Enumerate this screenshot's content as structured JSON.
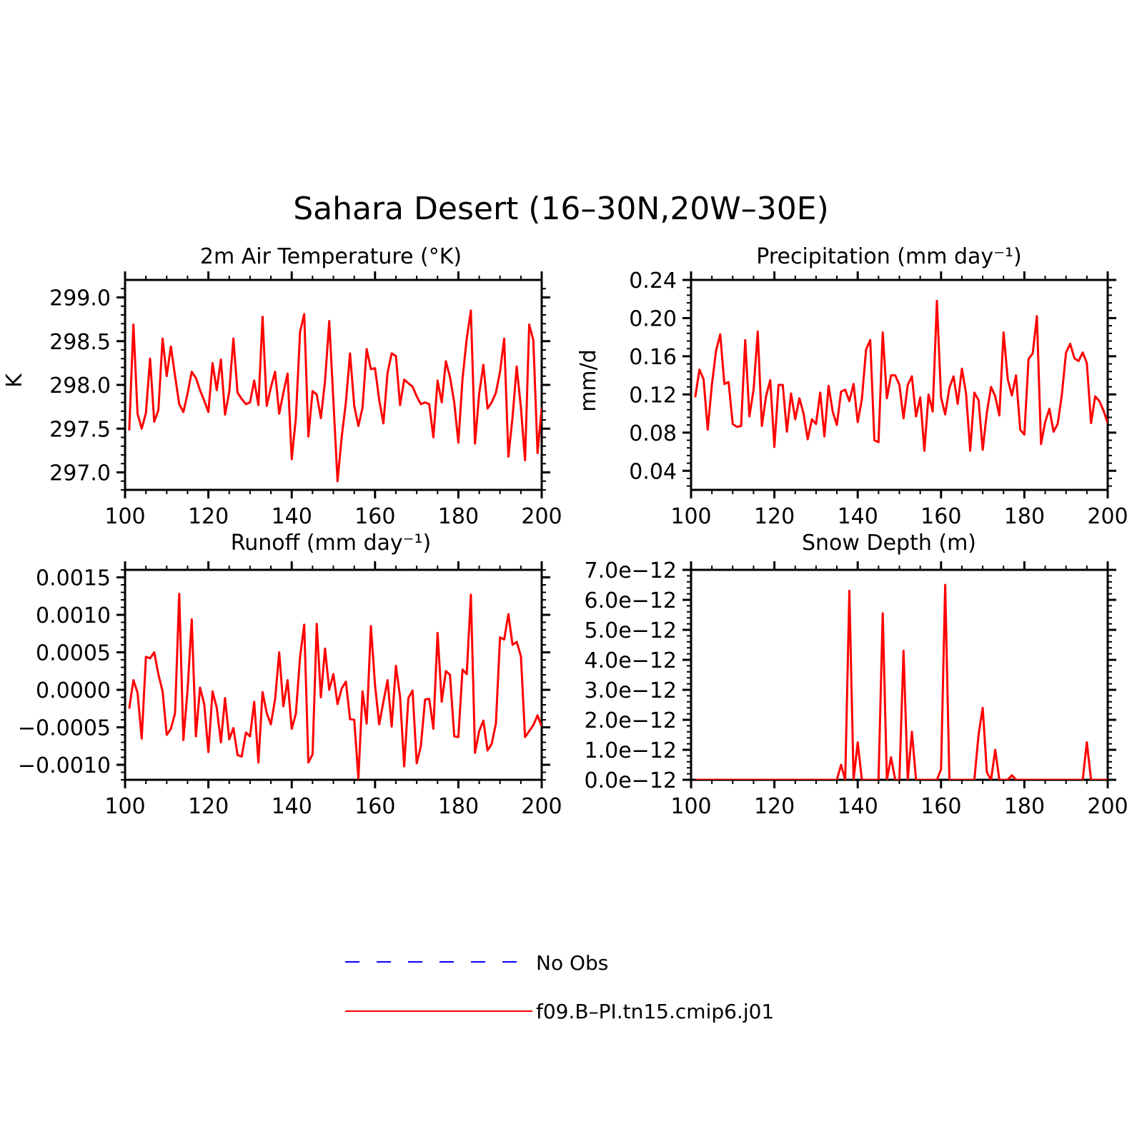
{
  "figure": {
    "title": "Sahara Desert (16–30N,20W–30E)"
  },
  "legend": {
    "items": [
      {
        "label": "No Obs",
        "color": "#0000ff",
        "dashed": true
      },
      {
        "label": "f09.B–PI.tn15.cmip6.j01",
        "color": "#ff0000",
        "dashed": false
      }
    ]
  },
  "chart_data": [
    {
      "type": "line",
      "title": "2m Air Temperature (°K)",
      "ylabel": "K",
      "xlim": [
        100,
        200
      ],
      "ylim": [
        296.8,
        299.2
      ],
      "xticks": [
        "100",
        "120",
        "140",
        "160",
        "180",
        "200"
      ],
      "yticks": [
        "297.0",
        "297.5",
        "298.0",
        "298.5",
        "299.0"
      ],
      "series": [
        {
          "name": "f09.B–PI.tn15.cmip6.j01",
          "color": "#ff0000",
          "x": [
            101,
            102,
            103,
            104,
            105,
            106,
            107,
            108,
            109,
            110,
            111,
            112,
            113,
            114,
            115,
            116,
            117,
            118,
            119,
            120,
            121,
            122,
            123,
            124,
            125,
            126,
            127,
            128,
            129,
            130,
            131,
            132,
            133,
            134,
            135,
            136,
            137,
            138,
            139,
            140,
            141,
            142,
            143,
            144,
            145,
            146,
            147,
            148,
            149,
            150,
            151,
            152,
            153,
            154,
            155,
            156,
            157,
            158,
            159,
            160,
            161,
            162,
            163,
            164,
            165,
            166,
            167,
            168,
            169,
            170,
            171,
            172,
            173,
            174,
            175,
            176,
            177,
            178,
            179,
            180,
            181,
            182,
            183,
            184,
            185,
            186,
            187,
            188,
            189,
            190,
            191,
            192,
            193,
            194,
            195,
            196,
            197,
            198,
            199,
            200
          ],
          "y": [
            297.48,
            298.69,
            297.67,
            297.5,
            297.68,
            298.3,
            297.58,
            297.71,
            298.53,
            298.1,
            298.44,
            298.1,
            297.78,
            297.69,
            297.9,
            298.15,
            298.08,
            297.94,
            297.82,
            297.69,
            298.25,
            297.94,
            298.29,
            297.66,
            297.92,
            298.53,
            297.91,
            297.84,
            297.78,
            297.8,
            298.05,
            297.77,
            298.78,
            297.76,
            297.97,
            298.15,
            297.67,
            297.91,
            298.13,
            297.15,
            297.62,
            298.61,
            298.81,
            297.41,
            297.93,
            297.89,
            297.62,
            298.04,
            298.73,
            297.82,
            296.9,
            297.41,
            297.8,
            298.36,
            297.76,
            297.53,
            297.74,
            298.41,
            298.18,
            298.19,
            297.83,
            297.56,
            298.14,
            298.36,
            298.33,
            297.77,
            298.06,
            298.02,
            297.98,
            297.87,
            297.78,
            297.8,
            297.78,
            297.4,
            298.05,
            297.8,
            298.27,
            298.09,
            297.8,
            297.34,
            298.07,
            298.53,
            298.85,
            297.33,
            297.9,
            298.23,
            297.73,
            297.8,
            297.91,
            298.15,
            298.53,
            297.18,
            297.63,
            298.21,
            297.74,
            297.14,
            298.69,
            298.51,
            297.22,
            297.74
          ]
        }
      ]
    },
    {
      "type": "line",
      "title": "Precipitation (mm day⁻¹)",
      "ylabel": "mm/d",
      "xlim": [
        100,
        200
      ],
      "ylim": [
        0.02,
        0.24
      ],
      "xticks": [
        "100",
        "120",
        "140",
        "160",
        "180",
        "200"
      ],
      "yticks": [
        "0.04",
        "0.08",
        "0.12",
        "0.16",
        "0.20",
        "0.24"
      ],
      "series": [
        {
          "name": "f09.B–PI.tn15.cmip6.j01",
          "color": "#ff0000",
          "x": [
            101,
            102,
            103,
            104,
            105,
            106,
            107,
            108,
            109,
            110,
            111,
            112,
            113,
            114,
            115,
            116,
            117,
            118,
            119,
            120,
            121,
            122,
            123,
            124,
            125,
            126,
            127,
            128,
            129,
            130,
            131,
            132,
            133,
            134,
            135,
            136,
            137,
            138,
            139,
            140,
            141,
            142,
            143,
            144,
            145,
            146,
            147,
            148,
            149,
            150,
            151,
            152,
            153,
            154,
            155,
            156,
            157,
            158,
            159,
            160,
            161,
            162,
            163,
            164,
            165,
            166,
            167,
            168,
            169,
            170,
            171,
            172,
            173,
            174,
            175,
            176,
            177,
            178,
            179,
            180,
            181,
            182,
            183,
            184,
            185,
            186,
            187,
            188,
            189,
            190,
            191,
            192,
            193,
            194,
            195,
            196,
            197,
            198,
            199,
            200
          ],
          "y": [
            0.117,
            0.146,
            0.136,
            0.083,
            0.13,
            0.166,
            0.183,
            0.131,
            0.133,
            0.089,
            0.086,
            0.087,
            0.177,
            0.097,
            0.125,
            0.186,
            0.087,
            0.118,
            0.135,
            0.065,
            0.13,
            0.13,
            0.081,
            0.121,
            0.094,
            0.116,
            0.1,
            0.073,
            0.094,
            0.089,
            0.122,
            0.076,
            0.129,
            0.102,
            0.088,
            0.123,
            0.125,
            0.113,
            0.131,
            0.091,
            0.115,
            0.167,
            0.177,
            0.072,
            0.07,
            0.185,
            0.116,
            0.14,
            0.14,
            0.13,
            0.095,
            0.13,
            0.139,
            0.097,
            0.117,
            0.061,
            0.12,
            0.102,
            0.218,
            0.117,
            0.099,
            0.127,
            0.139,
            0.11,
            0.147,
            0.121,
            0.061,
            0.122,
            0.114,
            0.062,
            0.101,
            0.128,
            0.118,
            0.098,
            0.185,
            0.136,
            0.119,
            0.14,
            0.083,
            0.078,
            0.157,
            0.163,
            0.202,
            0.068,
            0.091,
            0.105,
            0.081,
            0.089,
            0.12,
            0.164,
            0.173,
            0.158,
            0.155,
            0.164,
            0.153,
            0.09,
            0.118,
            0.113,
            0.103,
            0.09
          ]
        }
      ]
    },
    {
      "type": "line",
      "title": "Runoff (mm day⁻¹)",
      "ylabel": "",
      "xlim": [
        100,
        200
      ],
      "ylim": [
        -0.0012,
        0.0016
      ],
      "xticks": [
        "100",
        "120",
        "140",
        "160",
        "180",
        "200"
      ],
      "yticks": [
        "−0.0010",
        "−0.0005",
        "0.0000",
        "0.0005",
        "0.0010",
        "0.0015"
      ],
      "series": [
        {
          "name": "f09.B–PI.tn15.cmip6.j01",
          "color": "#ff0000",
          "x": [
            101,
            102,
            103,
            104,
            105,
            106,
            107,
            108,
            109,
            110,
            111,
            112,
            113,
            114,
            115,
            116,
            117,
            118,
            119,
            120,
            121,
            122,
            123,
            124,
            125,
            126,
            127,
            128,
            129,
            130,
            131,
            132,
            133,
            134,
            135,
            136,
            137,
            138,
            139,
            140,
            141,
            142,
            143,
            144,
            145,
            146,
            147,
            148,
            149,
            150,
            151,
            152,
            153,
            154,
            155,
            156,
            157,
            158,
            159,
            160,
            161,
            162,
            163,
            164,
            165,
            166,
            167,
            168,
            169,
            170,
            171,
            172,
            173,
            174,
            175,
            176,
            177,
            178,
            179,
            180,
            181,
            182,
            183,
            184,
            185,
            186,
            187,
            188,
            189,
            190,
            191,
            192,
            193,
            194,
            195,
            196,
            197,
            198,
            199,
            200
          ],
          "y": [
            -0.00025,
            0.00013,
            -4e-05,
            -0.00065,
            0.00044,
            0.00042,
            0.0005,
            0.00021,
            -2e-05,
            -0.0006,
            -0.00052,
            -0.00031,
            0.00128,
            -0.00067,
            -1e-05,
            0.00094,
            -0.00062,
            3e-05,
            -0.00019,
            -0.00083,
            -2e-05,
            -0.00024,
            -0.0007,
            -0.00011,
            -0.00066,
            -0.00051,
            -0.00087,
            -0.00089,
            -0.00057,
            -0.00062,
            -0.00016,
            -0.00097,
            -3e-05,
            -0.00031,
            -0.00046,
            -0.00013,
            0.0005,
            -0.00022,
            0.00013,
            -0.00052,
            -0.00032,
            0.00044,
            0.00087,
            -0.00097,
            -0.00086,
            0.00088,
            -0.0001,
            0.00055,
            0.0,
            0.00021,
            -0.00019,
            2e-05,
            0.00011,
            -0.00039,
            -0.0004,
            -0.00118,
            -2e-05,
            -0.00045,
            0.00085,
            6e-05,
            -0.00046,
            -0.00016,
            0.00013,
            -0.00049,
            0.00032,
            -9e-05,
            -0.00102,
            -0.00011,
            -1e-05,
            -0.00098,
            -0.00075,
            -0.00013,
            -0.00012,
            -0.00052,
            0.00076,
            -0.00016,
            0.00025,
            0.0002,
            -0.00062,
            -0.00063,
            0.00027,
            0.00021,
            0.00127,
            -0.00084,
            -0.00055,
            -0.00041,
            -0.00081,
            -0.00072,
            -0.00045,
            0.0007,
            0.00067,
            0.00101,
            0.0006,
            0.00064,
            0.00045,
            -0.00063,
            -0.00055,
            -0.00047,
            -0.00034,
            -0.00049
          ]
        }
      ]
    },
    {
      "type": "line",
      "title": "Snow Depth (m)",
      "ylabel": "",
      "xlim": [
        100,
        200
      ],
      "ylim": [
        0.0,
        7e-12
      ],
      "xticks": [
        "100",
        "120",
        "140",
        "160",
        "180",
        "200"
      ],
      "yticks": [
        "0.0e−12",
        "1.0e−12",
        "2.0e−12",
        "3.0e−12",
        "4.0e−12",
        "5.0e−12",
        "6.0e−12",
        "7.0e−12"
      ],
      "series": [
        {
          "name": "f09.B–PI.tn15.cmip6.j01",
          "color": "#ff0000",
          "x": [
            101,
            102,
            103,
            104,
            105,
            106,
            107,
            108,
            109,
            110,
            111,
            112,
            113,
            114,
            115,
            116,
            117,
            118,
            119,
            120,
            121,
            122,
            123,
            124,
            125,
            126,
            127,
            128,
            129,
            130,
            131,
            132,
            133,
            134,
            135,
            136,
            137,
            138,
            139,
            140,
            141,
            142,
            143,
            144,
            145,
            146,
            147,
            148,
            149,
            150,
            151,
            152,
            153,
            154,
            155,
            156,
            157,
            158,
            159,
            160,
            161,
            162,
            163,
            164,
            165,
            166,
            167,
            168,
            169,
            170,
            171,
            172,
            173,
            174,
            175,
            176,
            177,
            178,
            179,
            180,
            181,
            182,
            183,
            184,
            185,
            186,
            187,
            188,
            189,
            190,
            191,
            192,
            193,
            194,
            195,
            196,
            197,
            198,
            199,
            200
          ],
          "y": [
            0,
            0,
            0,
            0,
            0,
            0,
            0,
            0,
            0,
            0,
            0,
            0,
            0,
            0,
            0,
            0,
            0,
            0,
            0,
            0,
            0,
            0,
            0,
            0,
            0,
            0,
            0,
            0,
            0,
            0,
            0,
            0,
            0,
            0,
            0,
            5e-13,
            0,
            6.3e-12,
            0,
            1.25e-12,
            0,
            0,
            0,
            0,
            0,
            5.55e-12,
            0,
            7.5e-13,
            0,
            0,
            4.3e-12,
            0,
            1.6e-12,
            0,
            0,
            0,
            0,
            0,
            0,
            3.5e-13,
            6.5e-12,
            0,
            0,
            0,
            0,
            0,
            0,
            0,
            1.5e-12,
            2.4e-12,
            2.5e-13,
            0,
            1e-12,
            0,
            0,
            0,
            1.5e-13,
            0,
            0,
            0,
            0,
            0,
            0,
            0,
            0,
            0,
            0,
            0,
            0,
            0,
            0,
            0,
            0,
            0,
            1.25e-12,
            0,
            0,
            0,
            0,
            0
          ]
        }
      ]
    }
  ]
}
